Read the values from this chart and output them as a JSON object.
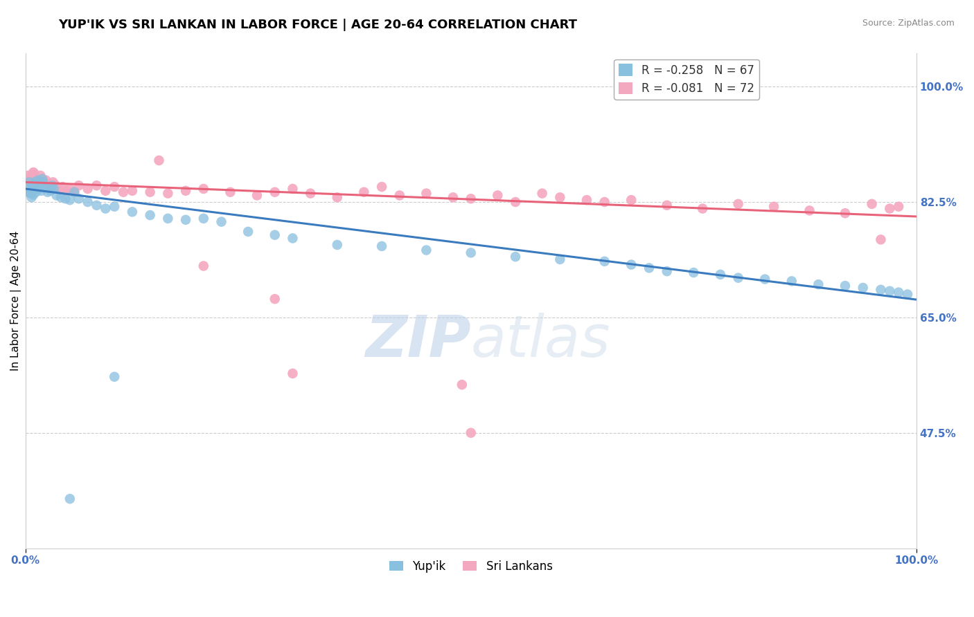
{
  "title": "YUP'IK VS SRI LANKAN IN LABOR FORCE | AGE 20-64 CORRELATION CHART",
  "source": "Source: ZipAtlas.com",
  "ylabel": "In Labor Force | Age 20-64",
  "legend_labels": [
    "Yup'ik",
    "Sri Lankans"
  ],
  "legend_R": [
    -0.258,
    -0.081
  ],
  "legend_N": [
    67,
    72
  ],
  "blue_color": "#89bfdf",
  "pink_color": "#f4a8bf",
  "blue_line_color": "#3a7abf",
  "pink_line_color": "#e8637a",
  "watermark_zip": "ZIP",
  "watermark_atlas": "atlas",
  "xmin": 0.0,
  "xmax": 1.0,
  "ymin": 0.3,
  "ymax": 1.05,
  "right_yticks": [
    0.475,
    0.65,
    0.825,
    1.0
  ],
  "right_yticklabels": [
    "47.5%",
    "65.0%",
    "82.5%",
    "100.0%"
  ],
  "bottom_xticklabels": [
    "0.0%",
    "100.0%"
  ],
  "yupik_x": [
    0.003,
    0.004,
    0.005,
    0.006,
    0.007,
    0.008,
    0.008,
    0.009,
    0.01,
    0.011,
    0.012,
    0.013,
    0.014,
    0.015,
    0.016,
    0.017,
    0.018,
    0.019,
    0.02,
    0.022,
    0.025,
    0.028,
    0.03,
    0.032,
    0.035,
    0.04,
    0.045,
    0.05,
    0.055,
    0.06,
    0.07,
    0.08,
    0.09,
    0.1,
    0.12,
    0.14,
    0.16,
    0.18,
    0.2,
    0.22,
    0.25,
    0.28,
    0.3,
    0.35,
    0.4,
    0.45,
    0.5,
    0.55,
    0.6,
    0.65,
    0.68,
    0.7,
    0.72,
    0.75,
    0.78,
    0.8,
    0.83,
    0.86,
    0.89,
    0.92,
    0.94,
    0.96,
    0.97,
    0.98,
    0.99,
    0.1,
    0.05
  ],
  "yupik_y": [
    0.84,
    0.855,
    0.845,
    0.838,
    0.832,
    0.85,
    0.842,
    0.836,
    0.855,
    0.848,
    0.84,
    0.85,
    0.858,
    0.845,
    0.852,
    0.848,
    0.842,
    0.86,
    0.855,
    0.848,
    0.84,
    0.842,
    0.85,
    0.845,
    0.835,
    0.832,
    0.83,
    0.828,
    0.84,
    0.83,
    0.825,
    0.82,
    0.815,
    0.818,
    0.81,
    0.805,
    0.8,
    0.798,
    0.8,
    0.795,
    0.78,
    0.775,
    0.77,
    0.76,
    0.758,
    0.752,
    0.748,
    0.742,
    0.738,
    0.735,
    0.73,
    0.725,
    0.72,
    0.718,
    0.715,
    0.71,
    0.708,
    0.705,
    0.7,
    0.698,
    0.695,
    0.692,
    0.69,
    0.688,
    0.685,
    0.56,
    0.375
  ],
  "sri_x": [
    0.002,
    0.003,
    0.004,
    0.005,
    0.006,
    0.007,
    0.008,
    0.009,
    0.01,
    0.011,
    0.012,
    0.013,
    0.015,
    0.017,
    0.019,
    0.021,
    0.023,
    0.025,
    0.028,
    0.031,
    0.034,
    0.038,
    0.042,
    0.046,
    0.05,
    0.055,
    0.06,
    0.07,
    0.08,
    0.09,
    0.1,
    0.11,
    0.12,
    0.14,
    0.16,
    0.18,
    0.2,
    0.23,
    0.26,
    0.28,
    0.3,
    0.32,
    0.35,
    0.38,
    0.4,
    0.42,
    0.45,
    0.48,
    0.5,
    0.53,
    0.55,
    0.58,
    0.6,
    0.63,
    0.65,
    0.68,
    0.72,
    0.76,
    0.8,
    0.84,
    0.88,
    0.92,
    0.95,
    0.97,
    0.98,
    0.2,
    0.28,
    0.15,
    0.5,
    0.49,
    0.3,
    0.96
  ],
  "sri_y": [
    0.858,
    0.865,
    0.86,
    0.855,
    0.862,
    0.858,
    0.865,
    0.87,
    0.868,
    0.862,
    0.855,
    0.86,
    0.858,
    0.865,
    0.86,
    0.855,
    0.858,
    0.852,
    0.848,
    0.855,
    0.85,
    0.845,
    0.848,
    0.842,
    0.845,
    0.84,
    0.85,
    0.845,
    0.85,
    0.842,
    0.848,
    0.84,
    0.842,
    0.84,
    0.838,
    0.842,
    0.845,
    0.84,
    0.835,
    0.84,
    0.845,
    0.838,
    0.832,
    0.84,
    0.848,
    0.835,
    0.838,
    0.832,
    0.83,
    0.835,
    0.825,
    0.838,
    0.832,
    0.828,
    0.825,
    0.828,
    0.82,
    0.815,
    0.822,
    0.818,
    0.812,
    0.808,
    0.822,
    0.815,
    0.818,
    0.728,
    0.678,
    0.888,
    0.475,
    0.548,
    0.565,
    0.768
  ],
  "background_color": "#ffffff",
  "grid_color": "#cccccc",
  "title_fontsize": 13,
  "axis_label_fontsize": 11,
  "tick_fontsize": 10,
  "legend_fontsize": 12,
  "right_tick_color": "#4472c4"
}
